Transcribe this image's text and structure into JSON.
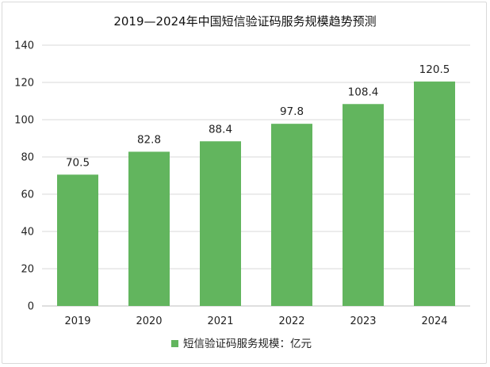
{
  "chart_data": {
    "type": "bar",
    "title": "2019—2024年中国短信验证码服务规模趋势预测",
    "categories": [
      "2019",
      "2020",
      "2021",
      "2022",
      "2023",
      "2024"
    ],
    "series": [
      {
        "name": "短信验证码服务规模：亿元",
        "values": [
          70.5,
          82.8,
          88.4,
          97.8,
          108.4,
          120.5
        ],
        "color": "#62b55e"
      }
    ],
    "ylim": [
      0,
      140
    ],
    "yticks": [
      0,
      20,
      40,
      60,
      80,
      100,
      120,
      140
    ],
    "grid": true,
    "legend": "bottom-center",
    "xlabel": "",
    "ylabel": ""
  }
}
